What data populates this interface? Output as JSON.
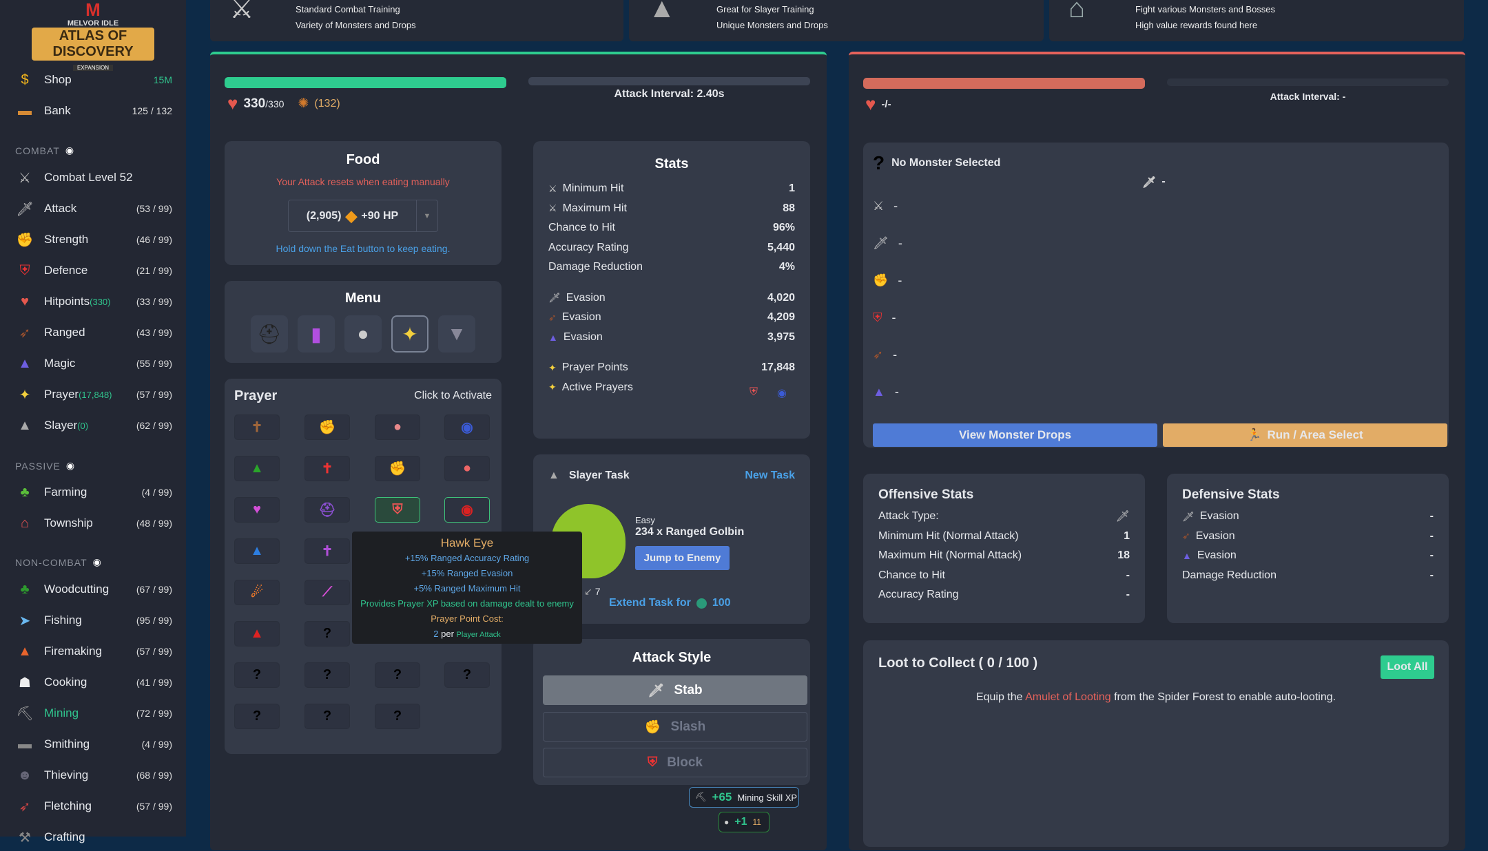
{
  "logo": {
    "top": "M",
    "line1": "MELVOR IDLE",
    "line2": "ATLAS OF DISCOVERY",
    "line3": "EXPANSION"
  },
  "sidebar": {
    "shop": {
      "label": "Shop",
      "value": "15M"
    },
    "bank": {
      "label": "Bank",
      "value": "125 / 132"
    },
    "sections": {
      "combat": "COMBAT",
      "passive": "PASSIVE",
      "noncombat": "NON-COMBAT"
    },
    "combat_level": "Combat Level 52",
    "combat": [
      {
        "label": "Attack",
        "extra": "",
        "value": "(53 / 99)",
        "icon": "sword"
      },
      {
        "label": "Strength",
        "extra": "",
        "value": "(46 / 99)",
        "icon": "muscle"
      },
      {
        "label": "Defence",
        "extra": "",
        "value": "(21 / 99)",
        "icon": "shield"
      },
      {
        "label": "Hitpoints",
        "extra": "(330)",
        "value": "(33 / 99)",
        "icon": "heart"
      },
      {
        "label": "Ranged",
        "extra": "",
        "value": "(43 / 99)",
        "icon": "bow"
      },
      {
        "label": "Magic",
        "extra": "",
        "value": "(55 / 99)",
        "icon": "wizard-hat"
      },
      {
        "label": "Prayer",
        "extra": "(17,848)",
        "value": "(57 / 99)",
        "icon": "sparkle"
      },
      {
        "label": "Slayer",
        "extra": "(0)",
        "value": "(62 / 99)",
        "icon": "slayer"
      }
    ],
    "passive": [
      {
        "label": "Farming",
        "value": "(4 / 99)"
      },
      {
        "label": "Township",
        "value": "(48 / 99)"
      }
    ],
    "noncombat": [
      {
        "label": "Woodcutting",
        "value": "(67 / 99)"
      },
      {
        "label": "Fishing",
        "value": "(95 / 99)"
      },
      {
        "label": "Firemaking",
        "value": "(57 / 99)"
      },
      {
        "label": "Cooking",
        "value": "(41 / 99)"
      },
      {
        "label": "Mining",
        "value": "(72 / 99)",
        "active": true
      },
      {
        "label": "Smithing",
        "value": "(4 / 99)"
      },
      {
        "label": "Thieving",
        "value": "(68 / 99)"
      },
      {
        "label": "Fletching",
        "value": "(57 / 99)"
      },
      {
        "label": "Crafting",
        "value": ""
      }
    ]
  },
  "areas": [
    {
      "l1": "Standard Combat Training",
      "l2": "Variety of Monsters and Drops"
    },
    {
      "l1": "Great for Slayer Training",
      "l2": "Unique Monsters and Drops"
    },
    {
      "l1": "Fight various Monsters and Bosses",
      "l2": "High value rewards found here"
    }
  ],
  "player": {
    "hp": "330",
    "hp_max": "/330",
    "hp_fraction": 1.0,
    "summon": "(132)",
    "attack_interval": "Attack Interval: 2.40s",
    "attack_progress": 0
  },
  "food": {
    "title": "Food",
    "warning": "Your Attack resets when eating manually",
    "qty": "(2,905)",
    "hp": "+90 HP",
    "hint": "Hold down the Eat button to keep eating."
  },
  "menu": {
    "title": "Menu"
  },
  "prayer": {
    "title": "Prayer",
    "hint": "Click to Activate",
    "unknown": "?"
  },
  "tooltip": {
    "title": "Hawk Eye",
    "l1": "+15% Ranged Accuracy Rating",
    "l2": "+15% Ranged Evasion",
    "l3": "+5% Ranged Maximum Hit",
    "l4": "Provides Prayer XP based on damage dealt to enemy",
    "cost_label": "Prayer Point Cost:",
    "cost": "2",
    "per": "per",
    "per_what": "Player Attack"
  },
  "stats": {
    "title": "Stats",
    "rows": [
      {
        "k": "Minimum Hit",
        "v": "1"
      },
      {
        "k": "Maximum Hit",
        "v": "88"
      },
      {
        "k": "Chance to Hit",
        "v": "96%"
      },
      {
        "k": "Accuracy Rating",
        "v": "5,440"
      },
      {
        "k": "Damage Reduction",
        "v": "4%"
      },
      {
        "k": "Evasion",
        "v": "4,020"
      },
      {
        "k": "Evasion",
        "v": "4,209"
      },
      {
        "k": "Evasion",
        "v": "3,975"
      },
      {
        "k": "Prayer Points",
        "v": "17,848"
      },
      {
        "k": "Active Prayers",
        "v": ""
      }
    ]
  },
  "slayer": {
    "title": "Slayer Task",
    "new_task": "New Task",
    "difficulty": "Easy",
    "task": "234 x Ranged Golbin",
    "jump": "Jump to Enemy",
    "extend": "Extend Task for",
    "extend_cost": "100",
    "kills": "7"
  },
  "attack_style": {
    "title": "Attack Style",
    "options": [
      "Stab",
      "Slash",
      "Block"
    ],
    "selected": "Stab"
  },
  "notifications": [
    {
      "amount": "+65",
      "label": "Mining Skill XP"
    },
    {
      "amount": "+1",
      "count": "11"
    }
  ],
  "enemy": {
    "hp": "-/-",
    "hp_fraction": 1.0,
    "attack_interval": "Attack Interval: -",
    "name": "No Monster Selected",
    "dash": "-",
    "view_drops": "View Monster Drops",
    "run": "Run / Area Select"
  },
  "offensive": {
    "title": "Offensive Stats",
    "rows": [
      {
        "k": "Attack Type:",
        "v": ""
      },
      {
        "k": "Minimum Hit (Normal Attack)",
        "v": "1"
      },
      {
        "k": "Maximum Hit (Normal Attack)",
        "v": "18"
      },
      {
        "k": "Chance to Hit",
        "v": "-"
      },
      {
        "k": "Accuracy Rating",
        "v": "-"
      }
    ]
  },
  "defensive": {
    "title": "Defensive Stats",
    "rows": [
      {
        "k": "Evasion",
        "v": "-"
      },
      {
        "k": "Evasion",
        "v": "-"
      },
      {
        "k": "Evasion",
        "v": "-"
      },
      {
        "k": "Damage Reduction",
        "v": "-"
      }
    ]
  },
  "loot": {
    "title": "Loot to Collect ( 0 / 100 )",
    "loot_all": "Loot All",
    "pre": "Equip the",
    "item": "Amulet of Looting",
    "post": "from the Spider Forest to enable auto-looting."
  },
  "colors": {
    "green": "#2ecc8f",
    "red": "#e5625b",
    "blue": "#4f7bd6",
    "orange": "#e2ac66",
    "link": "#4aa0e6"
  }
}
